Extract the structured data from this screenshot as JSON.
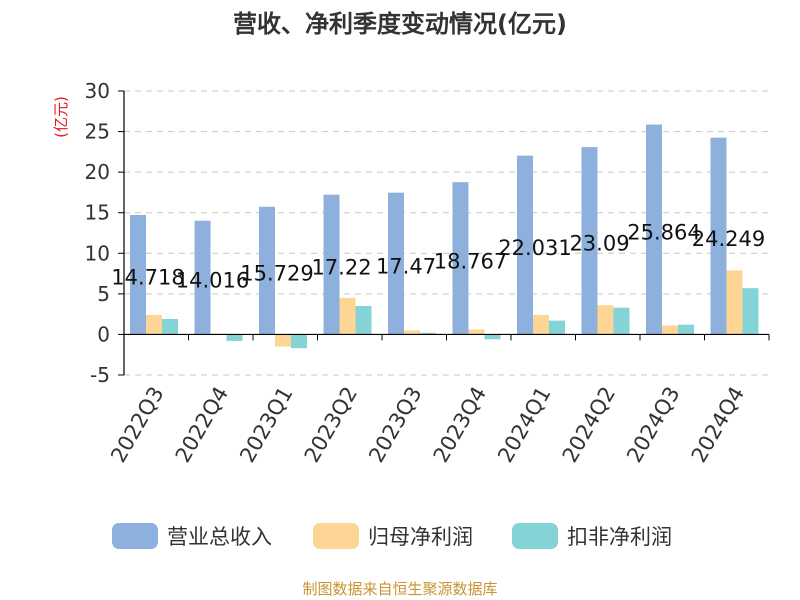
{
  "chart_data": {
    "type": "bar",
    "title": "营收、净利季度变动情况(亿元)",
    "ylabel": "(亿元)",
    "xlabel": "",
    "ylim": [
      -5,
      30
    ],
    "yticks": [
      -5,
      0,
      5,
      10,
      15,
      20,
      25,
      30
    ],
    "grid": true,
    "legend_position": "bottom",
    "categories": [
      "2022Q3",
      "2022Q4",
      "2023Q1",
      "2023Q2",
      "2023Q3",
      "2023Q4",
      "2024Q1",
      "2024Q2",
      "2024Q3",
      "2024Q4"
    ],
    "series": [
      {
        "name": "营业总收入",
        "color": "#8eb0dd",
        "values": [
          14.718,
          14.016,
          15.729,
          17.22,
          17.47,
          18.767,
          22.031,
          23.09,
          25.864,
          24.249
        ]
      },
      {
        "name": "归母净利润",
        "color": "#fdd696",
        "values": [
          2.4,
          0.1,
          -1.5,
          4.5,
          0.5,
          0.6,
          2.4,
          3.6,
          1.1,
          7.9
        ]
      },
      {
        "name": "扣非净利润",
        "color": "#84d3d7",
        "values": [
          1.9,
          -0.8,
          -1.7,
          3.5,
          0.2,
          -0.6,
          1.7,
          3.3,
          1.2,
          5.7
        ]
      }
    ],
    "data_labels": [
      "14.718",
      "14.016",
      "15.729",
      "17.22",
      "17.47",
      "18.767",
      "22.031",
      "23.09",
      "25.864",
      "24.249"
    ]
  },
  "footer": {
    "source": "制图数据来自恒生聚源数据库"
  },
  "colors": {
    "axis": "#000000",
    "grid": "#c8c8c8",
    "ylabel": "#e8141e",
    "source": "#c89432",
    "title": "#333333"
  }
}
